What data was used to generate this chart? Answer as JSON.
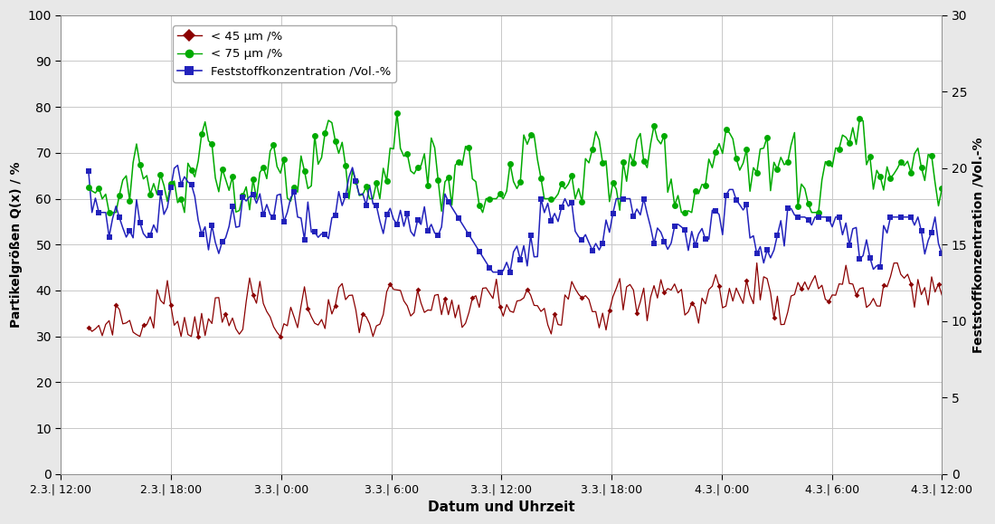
{
  "xlabel": "Datum und Uhrzeit",
  "ylabel_left": "Partikelgrößen Q(x) / %",
  "ylabel_right": "Feststoffkonzentration /Vol.-%",
  "ylim_left": [
    0,
    100
  ],
  "ylim_right": [
    0,
    30
  ],
  "yticks_left": [
    0,
    10,
    20,
    30,
    40,
    50,
    60,
    70,
    80,
    90,
    100
  ],
  "yticks_right": [
    0,
    5,
    10,
    15,
    20,
    25,
    30
  ],
  "xtick_labels": [
    "2.3.| 12:00",
    "2.3.| 18:00",
    "3.3.| 0:00",
    "3.3.| 6:00",
    "3.3.| 12:00",
    "3.3.| 18:00",
    "4.3.| 0:00",
    "4.3.| 6:00",
    "4.3.| 12:00"
  ],
  "legend_labels": [
    "< 45 μm /%",
    "< 75 μm /%",
    "Feststoffkonzentration /Vol.-%"
  ],
  "color_45": "#8B0000",
  "color_75": "#00AA00",
  "color_fest": "#2222BB",
  "background_color": "#e8e8e8",
  "plot_bg": "#ffffff",
  "grid_color": "#c8c8c8"
}
